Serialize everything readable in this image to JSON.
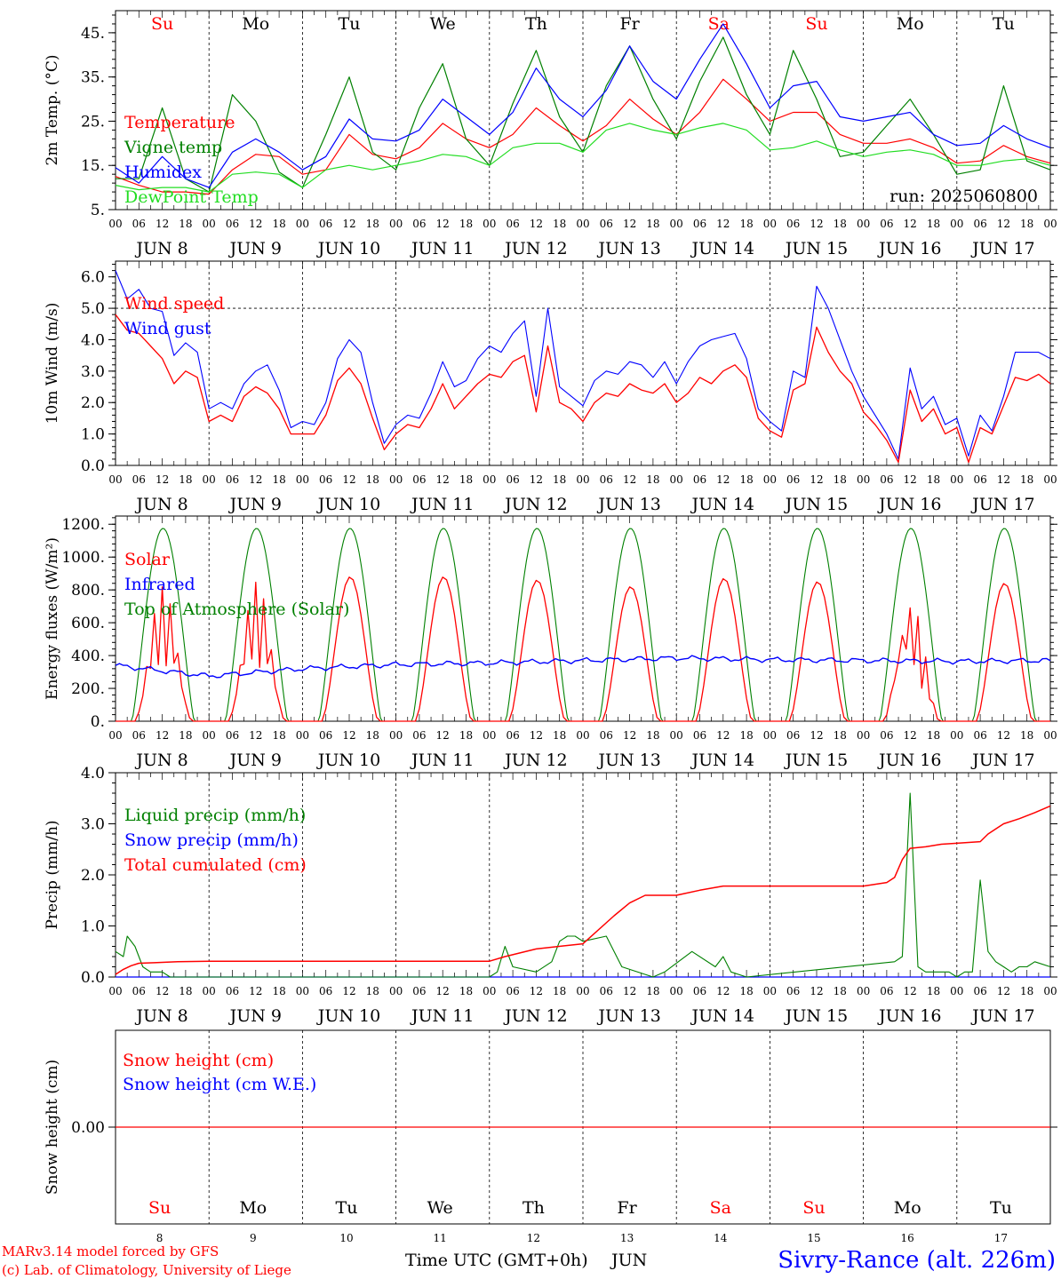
{
  "days": [
    {
      "abbr": "Su",
      "date": "JUN  8",
      "num": "8",
      "weekend": true
    },
    {
      "abbr": "Mo",
      "date": "JUN  9",
      "num": "9",
      "weekend": false
    },
    {
      "abbr": "Tu",
      "date": "JUN 10",
      "num": "10",
      "weekend": false
    },
    {
      "abbr": "We",
      "date": "JUN 11",
      "num": "11",
      "weekend": false
    },
    {
      "abbr": "Th",
      "date": "JUN 12",
      "num": "12",
      "weekend": false
    },
    {
      "abbr": "Fr",
      "date": "JUN 13",
      "num": "13",
      "weekend": false
    },
    {
      "abbr": "Sa",
      "date": "JUN 14",
      "num": "14",
      "weekend": true
    },
    {
      "abbr": "Su",
      "date": "JUN 15",
      "num": "15",
      "weekend": true
    },
    {
      "abbr": "Mo",
      "date": "JUN 16",
      "num": "16",
      "weekend": false
    },
    {
      "abbr": "Tu",
      "date": "JUN 17",
      "num": "17",
      "weekend": false
    }
  ],
  "hour_labels": [
    "00",
    "06",
    "12",
    "18"
  ],
  "hour_end_label": "00",
  "footer": {
    "model": "MARv3.14 model forced by GFS",
    "copyright": "(c) Lab. of Climatology, University of Liege",
    "xlabel": "Time UTC (GMT+0h)",
    "month": "JUN",
    "station": "Sivry-Rance (alt. 226m)"
  },
  "colors": {
    "red": "#ff0000",
    "blue": "#0000ff",
    "green": "#008000",
    "lightgreen": "#22dd22",
    "weekend": "#ff0000",
    "text": "#000000"
  },
  "chart_data": [
    {
      "type": "line",
      "ylabel": "2m Temp. (°C)",
      "ylim": [
        5,
        50
      ],
      "yticks": [
        "45.",
        "35.",
        "25.",
        "15.",
        "5."
      ],
      "run_label": "run: 2025060800",
      "x_hours": [
        0,
        6,
        12,
        18,
        24,
        30,
        36,
        42,
        48,
        54,
        60,
        66,
        72,
        78,
        84,
        90,
        96,
        102,
        108,
        114,
        120,
        126,
        132,
        138,
        144,
        150,
        156,
        162,
        168,
        174,
        180,
        186,
        192,
        198,
        204,
        210,
        216,
        222,
        228,
        234,
        240
      ],
      "series": [
        {
          "name": "Temperature",
          "color": "#ff0000",
          "values": [
            12.5,
            10.5,
            9,
            9,
            8.5,
            14,
            17.5,
            17,
            13,
            14,
            22,
            17.5,
            16.5,
            19,
            24.5,
            21,
            19,
            22,
            28,
            24,
            20.5,
            24,
            30,
            25.5,
            22,
            27,
            34.5,
            30,
            25,
            27,
            27,
            22,
            20,
            20,
            21,
            19,
            15.5,
            16,
            19.5,
            17,
            15.5
          ]
        },
        {
          "name": "Vigne temp",
          "color": "#008000",
          "values": [
            12,
            12,
            28,
            12,
            9,
            31,
            25,
            13.5,
            10,
            22,
            35,
            18,
            14,
            28,
            38,
            21,
            15,
            29,
            41,
            26,
            18,
            33,
            42,
            30,
            21,
            34,
            44,
            31,
            22,
            41,
            30,
            17,
            18,
            24,
            30,
            22,
            13,
            14,
            33,
            16,
            14
          ]
        },
        {
          "name": "Humidex",
          "color": "#0000ff",
          "values": [
            14.5,
            11,
            17,
            12,
            10,
            18,
            21,
            18,
            14,
            17,
            25.5,
            21,
            20.5,
            23,
            30,
            26,
            22,
            27,
            37,
            30,
            26,
            32,
            42,
            34,
            30,
            39,
            47,
            38,
            28,
            33,
            34,
            26,
            25,
            26,
            27,
            22,
            19.5,
            20,
            24,
            21,
            19
          ]
        },
        {
          "name": "DewPoint Temp",
          "color": "#22dd22",
          "values": [
            10.5,
            9.5,
            10,
            10,
            9,
            13,
            13.5,
            13,
            10,
            14,
            15,
            14,
            15,
            16,
            17.5,
            17,
            15,
            19,
            20,
            20,
            18,
            23,
            24.5,
            23,
            22,
            23.5,
            24.5,
            23,
            18.5,
            19,
            20.5,
            18.5,
            17,
            18,
            18.5,
            17.5,
            15,
            15,
            16,
            16.5,
            15
          ]
        }
      ]
    },
    {
      "type": "line",
      "ylabel": "10m Wind (m/s)",
      "ylim": [
        0,
        6.5
      ],
      "yticks": [
        "6.0",
        "5.0",
        "4.0",
        "3.0",
        "2.0",
        "1.0",
        "0.0"
      ],
      "ref_line": 5.0,
      "x_hours": [
        0,
        3,
        6,
        9,
        12,
        15,
        18,
        21,
        24,
        27,
        30,
        33,
        36,
        39,
        42,
        45,
        48,
        51,
        54,
        57,
        60,
        63,
        66,
        69,
        72,
        75,
        78,
        81,
        84,
        87,
        90,
        93,
        96,
        99,
        102,
        105,
        108,
        111,
        114,
        117,
        120,
        123,
        126,
        129,
        132,
        135,
        138,
        141,
        144,
        147,
        150,
        153,
        156,
        159,
        162,
        165,
        168,
        171,
        174,
        177,
        180,
        183,
        186,
        189,
        192,
        195,
        198,
        201,
        204,
        207,
        210,
        213,
        216,
        219,
        222,
        225,
        228,
        231,
        234,
        237,
        240
      ],
      "series": [
        {
          "name": "Wind speed",
          "color": "#ff0000",
          "values": [
            4.8,
            4.3,
            4.2,
            3.8,
            3.4,
            2.6,
            3.0,
            2.8,
            1.4,
            1.6,
            1.4,
            2.2,
            2.5,
            2.3,
            1.8,
            1.0,
            1.0,
            1.0,
            1.6,
            2.7,
            3.1,
            2.6,
            1.5,
            0.5,
            1.0,
            1.3,
            1.2,
            1.8,
            2.6,
            1.8,
            2.2,
            2.6,
            2.9,
            2.8,
            3.3,
            3.5,
            1.7,
            3.8,
            2.0,
            1.8,
            1.4,
            2.0,
            2.3,
            2.2,
            2.6,
            2.4,
            2.3,
            2.6,
            2.0,
            2.3,
            2.8,
            2.6,
            3.0,
            3.2,
            2.8,
            1.5,
            1.1,
            0.9,
            2.4,
            2.6,
            4.4,
            3.6,
            3.0,
            2.6,
            1.7,
            1.3,
            0.8,
            0.1,
            2.4,
            1.4,
            1.8,
            1.0,
            1.2,
            0.1,
            1.2,
            1.0,
            1.9,
            2.8,
            2.7,
            2.9,
            2.6
          ]
        },
        {
          "name": "Wind gust",
          "color": "#0000ff",
          "values": [
            6.2,
            5.3,
            5.6,
            5.0,
            4.9,
            3.5,
            3.9,
            3.6,
            1.8,
            2.0,
            1.8,
            2.6,
            3.0,
            3.2,
            2.4,
            1.2,
            1.4,
            1.3,
            2.0,
            3.4,
            4.0,
            3.6,
            2.0,
            0.7,
            1.3,
            1.6,
            1.5,
            2.3,
            3.3,
            2.5,
            2.7,
            3.4,
            3.8,
            3.6,
            4.2,
            4.6,
            2.2,
            5.0,
            2.5,
            2.2,
            1.9,
            2.7,
            3.0,
            2.9,
            3.3,
            3.2,
            2.8,
            3.3,
            2.6,
            3.3,
            3.8,
            4.0,
            4.1,
            4.2,
            3.4,
            1.8,
            1.4,
            1.1,
            3.0,
            2.8,
            5.7,
            5.0,
            4.0,
            3.0,
            2.2,
            1.6,
            1.0,
            0.2,
            3.1,
            1.8,
            2.2,
            1.3,
            1.5,
            0.3,
            1.6,
            1.1,
            2.2,
            3.6,
            3.6,
            3.6,
            3.4
          ]
        }
      ]
    },
    {
      "type": "line",
      "ylabel": "Energy fluxes (W/m²)",
      "ylim": [
        0,
        1250
      ],
      "yticks": [
        "1200.",
        "1000.",
        "800.",
        "600.",
        "400.",
        "200.",
        "0."
      ],
      "series": [
        {
          "name": "Solar",
          "color": "#ff0000",
          "peaks": [
            820,
            850,
            880,
            880,
            860,
            820,
            870,
            850,
            720,
            840
          ],
          "cloudy_days": [
            0,
            1,
            8
          ]
        },
        {
          "name": "Infrared",
          "color": "#0000ff",
          "days": [
            340,
            275,
            320,
            345,
            355,
            370,
            385,
            375,
            370,
            365,
            370
          ]
        },
        {
          "name": "Top of Atmosphere (Solar)",
          "color": "#008000",
          "peak": 1175,
          "sunrise_h": 4.2,
          "sunset_h": 20.2
        }
      ]
    },
    {
      "type": "line",
      "ylabel": "Precip (mm/h)",
      "ylim": [
        0,
        4.0
      ],
      "yticks": [
        "4.0",
        "3.0",
        "2.0",
        "1.0",
        "0.0"
      ],
      "series": [
        {
          "name": "Liquid precip (mm/h)",
          "color": "#008000",
          "x_hours": [
            0,
            2,
            3,
            5,
            7,
            9,
            12,
            14,
            96,
            98,
            100,
            102,
            108,
            112,
            114,
            116,
            118,
            120,
            126,
            130,
            138,
            141,
            148,
            154,
            156,
            158,
            162,
            200,
            202,
            204,
            206,
            208,
            210,
            212,
            214,
            216,
            218,
            220,
            222,
            224,
            226,
            228,
            230,
            232,
            234,
            236,
            240
          ],
          "values": [
            0.5,
            0.4,
            0.8,
            0.6,
            0.2,
            0.1,
            0.1,
            0,
            0,
            0.1,
            0.6,
            0.2,
            0.1,
            0.3,
            0.7,
            0.8,
            0.8,
            0.7,
            0.8,
            0.2,
            0,
            0.1,
            0.5,
            0.2,
            0.4,
            0.1,
            0,
            0.3,
            0.4,
            3.6,
            0.2,
            0.1,
            0.1,
            0.1,
            0.1,
            0,
            0.1,
            0.1,
            1.9,
            0.5,
            0.3,
            0.2,
            0.1,
            0.2,
            0.2,
            0.3,
            0.2
          ]
        },
        {
          "name": "Snow precip (mm/h)",
          "color": "#0000ff",
          "values": [
            0,
            0
          ]
        },
        {
          "name": "Total cumulated (cm)",
          "color": "#ff0000",
          "x_hours": [
            0,
            2,
            4,
            6,
            10,
            16,
            24,
            96,
            100,
            108,
            120,
            128,
            132,
            136,
            144,
            150,
            156,
            168,
            192,
            198,
            200,
            202,
            204,
            208,
            212,
            216,
            222,
            224,
            226,
            228,
            232,
            236,
            240
          ],
          "values": [
            0.05,
            0.15,
            0.22,
            0.27,
            0.28,
            0.3,
            0.31,
            0.31,
            0.4,
            0.55,
            0.65,
            1.2,
            1.45,
            1.6,
            1.6,
            1.7,
            1.78,
            1.78,
            1.78,
            1.85,
            1.95,
            2.3,
            2.52,
            2.55,
            2.6,
            2.62,
            2.65,
            2.8,
            2.9,
            3.0,
            3.1,
            3.22,
            3.35
          ]
        }
      ]
    },
    {
      "type": "line",
      "ylabel": "Snow height (cm)",
      "ylim": [
        -1,
        1
      ],
      "yticks": [
        "0.00"
      ],
      "series": [
        {
          "name": "Snow height (cm)",
          "color": "#ff0000",
          "values": [
            0,
            0
          ]
        },
        {
          "name": "Snow height (cm W.E.)",
          "color": "#0000ff",
          "values": [
            0,
            0
          ]
        }
      ]
    }
  ]
}
